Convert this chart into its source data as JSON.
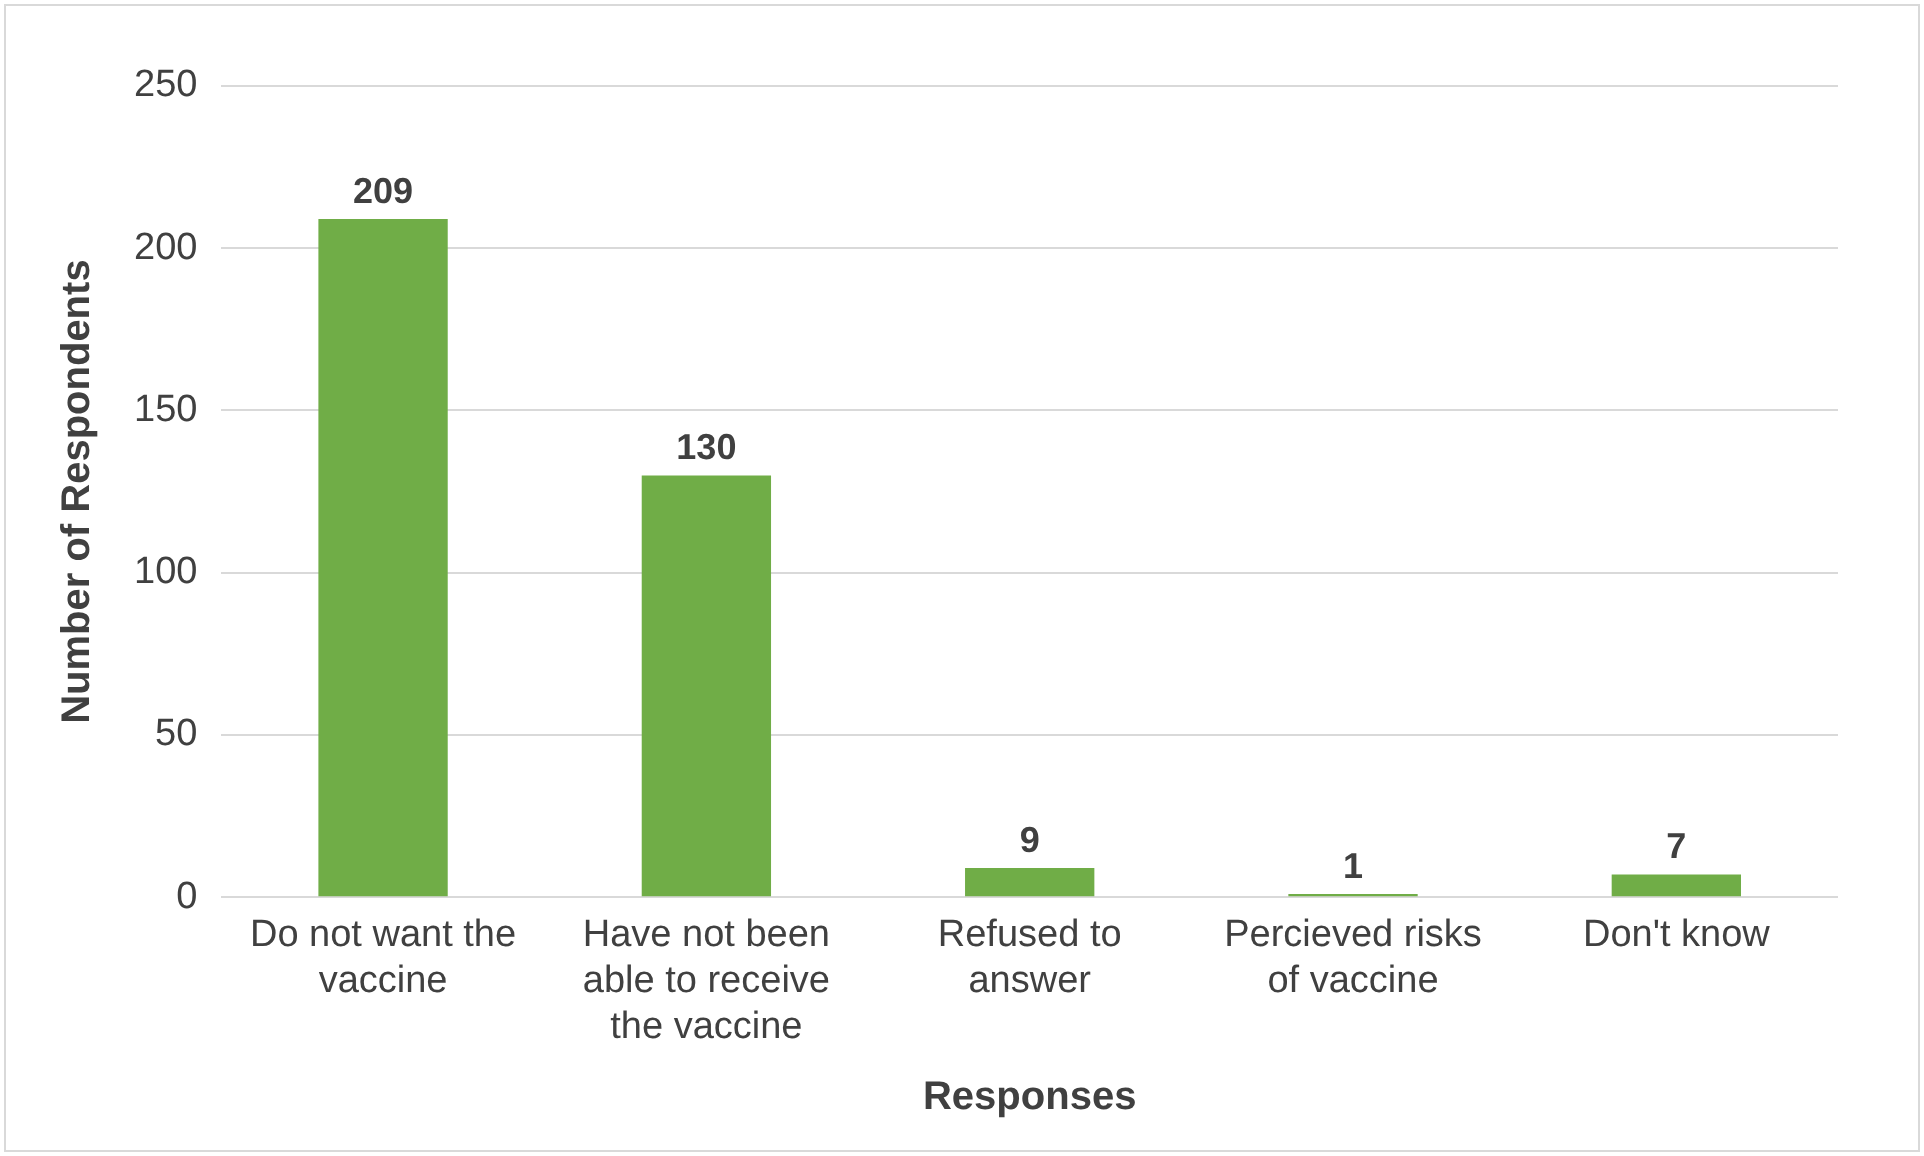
{
  "chart_data": {
    "type": "bar",
    "xlabel": "Responses",
    "ylabel": "Number of Respondents",
    "categories": [
      "Do not want the vaccine",
      "Have not been able to receive the vaccine",
      "Refused to answer",
      "Percieved risks of vaccine",
      "Don't know"
    ],
    "values": [
      209,
      130,
      9,
      1,
      7
    ],
    "color": "#70ad47",
    "ylim": [
      0,
      250
    ],
    "yticks": [
      0,
      50,
      100,
      150,
      200,
      250
    ],
    "grid": "y",
    "data_labels": true,
    "legend": false
  }
}
